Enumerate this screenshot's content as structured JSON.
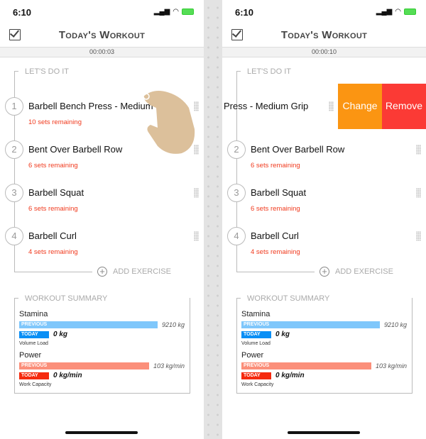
{
  "status": {
    "time": "6:10"
  },
  "header": {
    "title": "Today's Workout"
  },
  "list_title": "LET'S DO IT",
  "add_exercise": "ADD EXERCISE",
  "exercises": [
    {
      "number": "1",
      "name": "Barbell Bench Press - Medium Grip",
      "sets": "10 sets remaining"
    },
    {
      "number": "2",
      "name": "Bent Over Barbell Row",
      "sets": "6 sets remaining"
    },
    {
      "number": "3",
      "name": "Barbell Squat",
      "sets": "6 sets remaining"
    },
    {
      "number": "4",
      "name": "Barbell Curl",
      "sets": "4 sets remaining"
    }
  ],
  "swipe_actions": {
    "change": "Change",
    "remove": "Remove",
    "change_color": "#fb9512",
    "remove_color": "#fb3a35"
  },
  "summary": {
    "title": "WORKOUT SUMMARY",
    "stamina": {
      "label": "Stamina",
      "previous_label": "PREVIOUS",
      "previous_value": "9210 kg",
      "today_label": "TODAY",
      "today_value": "0 kg",
      "note": "Volume Load",
      "previous_color": "#7fc7fb",
      "today_color": "#0a8ff5"
    },
    "power": {
      "label": "Power",
      "previous_label": "PREVIOUS",
      "previous_value": "103 kg/min",
      "today_label": "TODAY",
      "today_value": "0 kg/min",
      "note": "Work Capacity",
      "previous_color": "#fb8f7a",
      "today_color": "#f52a0e"
    }
  },
  "phones": [
    {
      "timer": "00:00:03",
      "swiped_text": "",
      "gesture": "swipe-left-hand-icon"
    },
    {
      "timer": "00:00:10",
      "swiped_text": "Press - Medium Grip"
    }
  ]
}
